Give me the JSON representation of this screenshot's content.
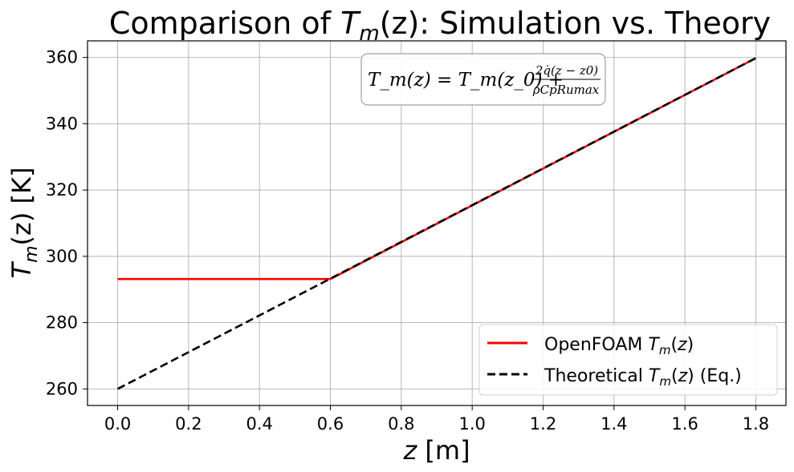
{
  "chart_data": {
    "type": "line",
    "title": {
      "prefix": "Comparison of ",
      "T": "T",
      "sub": "m",
      "arg": "(z)",
      "suffix": ": Simulation vs. Theory"
    },
    "xlabel": {
      "var": "z",
      "unit": " [m]"
    },
    "ylabel": {
      "T": "T",
      "sub": "m",
      "arg": "(z)",
      "unit": " [K]"
    },
    "xlim": [
      -0.085,
      1.885
    ],
    "ylim": [
      255,
      365
    ],
    "xticks": [
      0.0,
      0.2,
      0.4,
      0.6,
      0.8,
      1.0,
      1.2,
      1.4,
      1.6,
      1.8
    ],
    "xtick_labels": [
      "0.0",
      "0.2",
      "0.4",
      "0.6",
      "0.8",
      "1.0",
      "1.2",
      "1.4",
      "1.6",
      "1.8"
    ],
    "yticks": [
      260,
      280,
      300,
      320,
      340,
      360
    ],
    "ytick_labels": [
      "260",
      "280",
      "300",
      "320",
      "340",
      "360"
    ],
    "grid": true,
    "legend_position": "lower-right",
    "annotation": {
      "lhs": "T_m(z) = T_m(z_0) +",
      "numerator": "2q̇(z − z0)",
      "denominator": "ρCpRumax"
    },
    "series": [
      {
        "name": "OpenFOAM T_m(z)",
        "legend_prefix": "OpenFOAM ",
        "legend_suffix": "",
        "color": "#ff0000",
        "dash": "solid",
        "x": [
          0.0,
          0.6,
          1.8
        ],
        "y": [
          293.15,
          293.15,
          359.8
        ]
      },
      {
        "name": "Theoretical T_m(z) (Eq.)",
        "legend_prefix": "Theoretical ",
        "legend_suffix": " (Eq.)",
        "color": "#000000",
        "dash": "dashed",
        "x": [
          0.0,
          1.8
        ],
        "y": [
          260.0,
          359.8
        ]
      }
    ]
  }
}
